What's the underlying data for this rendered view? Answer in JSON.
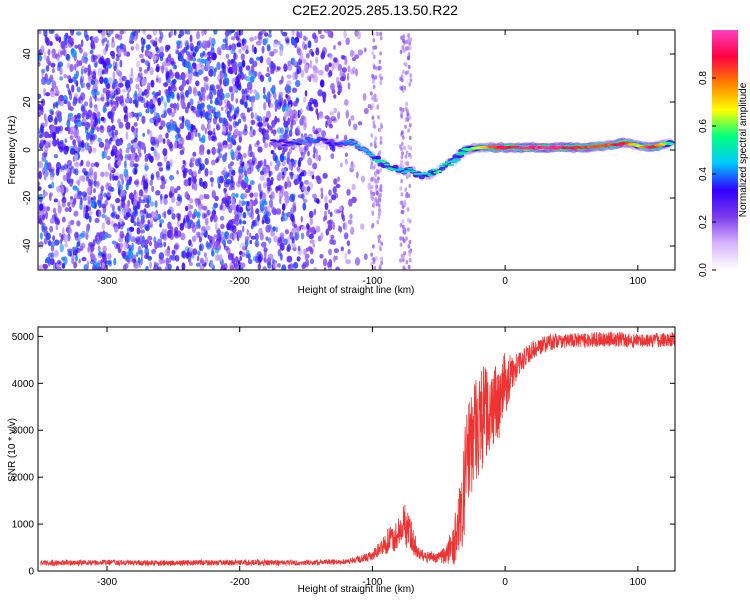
{
  "page_title": "C2E2.2025.285.13.50.R22",
  "chart_data": [
    {
      "type": "heatmap",
      "title": "C2E2.2025.285.13.50.R22",
      "xlabel": "Height of straight line (km)",
      "ylabel": "Frequency (Hz)",
      "xlim": [
        -352,
        128
      ],
      "ylim": [
        -50,
        50
      ],
      "xticks": [
        -300,
        -200,
        -100,
        0,
        100
      ],
      "yticks": [
        -40,
        -20,
        0,
        20,
        40
      ],
      "colorbar": {
        "label": "Normalized spectral amplitude",
        "range": [
          0,
          1
        ],
        "ticks": [
          "0.0",
          "0.2",
          "0.4",
          "0.6",
          "0.8"
        ],
        "tick_values": [
          0.0,
          0.2,
          0.4,
          0.6,
          0.8
        ],
        "colors": [
          "#ffffff",
          "#d8b4fe",
          "#7c3aed",
          "#3000ff",
          "#00c8ff",
          "#00ff80",
          "#ffff00",
          "#ff8000",
          "#ff0040",
          "#ff40c0"
        ]
      },
      "noise_region_km": [
        -352,
        -105
      ],
      "signal_track": [
        {
          "x": -175,
          "y": 3,
          "a": 0.35
        },
        {
          "x": -160,
          "y": 3,
          "a": 0.35
        },
        {
          "x": -145,
          "y": 4,
          "a": 0.4
        },
        {
          "x": -130,
          "y": 3,
          "a": 0.35
        },
        {
          "x": -115,
          "y": 3,
          "a": 0.4
        },
        {
          "x": -100,
          "y": -3,
          "a": 0.5
        },
        {
          "x": -90,
          "y": -6,
          "a": 0.55
        },
        {
          "x": -80,
          "y": -8,
          "a": 0.5
        },
        {
          "x": -70,
          "y": -9,
          "a": 0.5
        },
        {
          "x": -60,
          "y": -11,
          "a": 0.55
        },
        {
          "x": -50,
          "y": -8,
          "a": 0.55
        },
        {
          "x": -40,
          "y": -5,
          "a": 0.5
        },
        {
          "x": -30,
          "y": 0,
          "a": 0.55
        },
        {
          "x": -20,
          "y": 1,
          "a": 0.65
        },
        {
          "x": -10,
          "y": 1,
          "a": 0.8
        },
        {
          "x": 0,
          "y": 1,
          "a": 0.9
        },
        {
          "x": 20,
          "y": 1,
          "a": 0.95
        },
        {
          "x": 40,
          "y": 1,
          "a": 0.95
        },
        {
          "x": 60,
          "y": 1,
          "a": 0.85
        },
        {
          "x": 80,
          "y": 2,
          "a": 0.8
        },
        {
          "x": 90,
          "y": 3,
          "a": 0.95
        },
        {
          "x": 100,
          "y": 2,
          "a": 0.6
        },
        {
          "x": 110,
          "y": 1,
          "a": 0.95
        },
        {
          "x": 125,
          "y": 3,
          "a": 0.5
        }
      ]
    },
    {
      "type": "line",
      "xlabel": "Height of straight line (km)",
      "ylabel": "SNR (10 * v/v)",
      "xlim": [
        -352,
        128
      ],
      "ylim": [
        0,
        5200
      ],
      "xticks": [
        -300,
        -200,
        -100,
        0,
        100
      ],
      "yticks": [
        0,
        1000,
        2000,
        3000,
        4000,
        5000
      ],
      "color": "#ee3333",
      "series": [
        {
          "name": "SNR",
          "x": [
            -350,
            -300,
            -250,
            -200,
            -150,
            -120,
            -110,
            -100,
            -90,
            -80,
            -75,
            -70,
            -65,
            -60,
            -55,
            -50,
            -45,
            -40,
            -35,
            -30,
            -25,
            -20,
            -15,
            -10,
            -5,
            0,
            5,
            10,
            20,
            30,
            40,
            60,
            80,
            100,
            128
          ],
          "y": [
            170,
            180,
            170,
            180,
            180,
            200,
            250,
            320,
            600,
            800,
            1000,
            700,
            350,
            300,
            300,
            280,
            350,
            500,
            900,
            2000,
            3000,
            3200,
            3300,
            3600,
            3500,
            4000,
            4200,
            4400,
            4700,
            4850,
            4900,
            4920,
            4950,
            4900,
            4950
          ],
          "noise": [
            60,
            60,
            60,
            60,
            60,
            60,
            80,
            100,
            250,
            350,
            500,
            300,
            150,
            120,
            120,
            120,
            200,
            400,
            700,
            1200,
            1300,
            1200,
            1100,
            900,
            800,
            700,
            400,
            250,
            200,
            180,
            160,
            160,
            160,
            160,
            160
          ]
        }
      ]
    }
  ]
}
